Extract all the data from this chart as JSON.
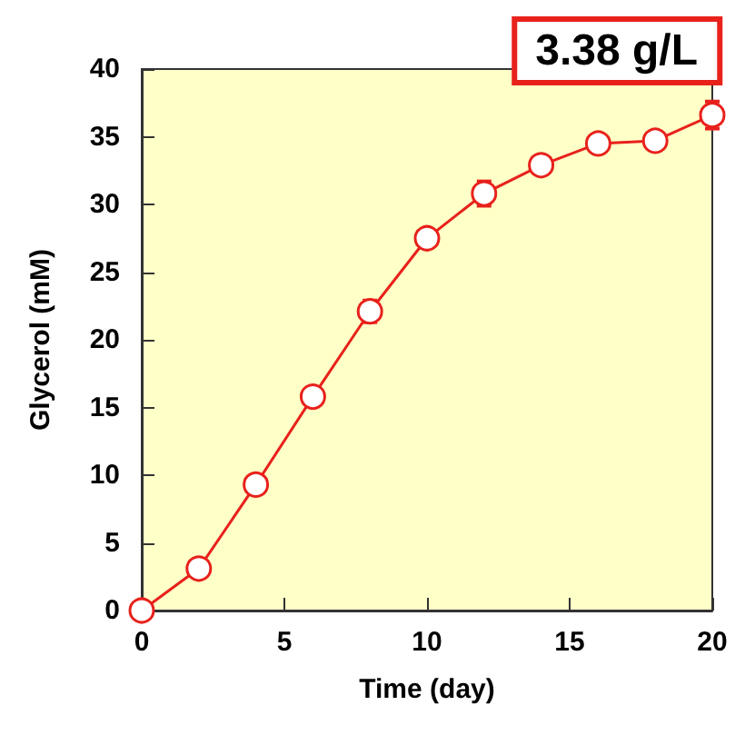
{
  "chart_data": {
    "type": "line",
    "xlabel": "Time (day)",
    "ylabel": "Glycerol (mM)",
    "annotations": [
      "3.38 g/L"
    ],
    "x": [
      0,
      2,
      4,
      6,
      8,
      10,
      12,
      14,
      16,
      18,
      20
    ],
    "series": [
      {
        "color": "#e8211b",
        "values": [
          0,
          3.1,
          9.3,
          15.8,
          22.1,
          27.5,
          30.8,
          32.9,
          34.5,
          34.7,
          36.6
        ],
        "errors": [
          null,
          null,
          null,
          null,
          0.8,
          0.5,
          0.9,
          null,
          null,
          0.6,
          1.0
        ]
      }
    ],
    "xlim": [
      0,
      20
    ],
    "xticks": [
      0,
      5,
      10,
      15,
      20
    ],
    "ylim": [
      0,
      40
    ],
    "yticks": [
      0,
      5,
      10,
      15,
      20,
      25,
      30,
      35,
      40
    ],
    "marker": "circle",
    "line_style": "solid",
    "grid": false
  }
}
